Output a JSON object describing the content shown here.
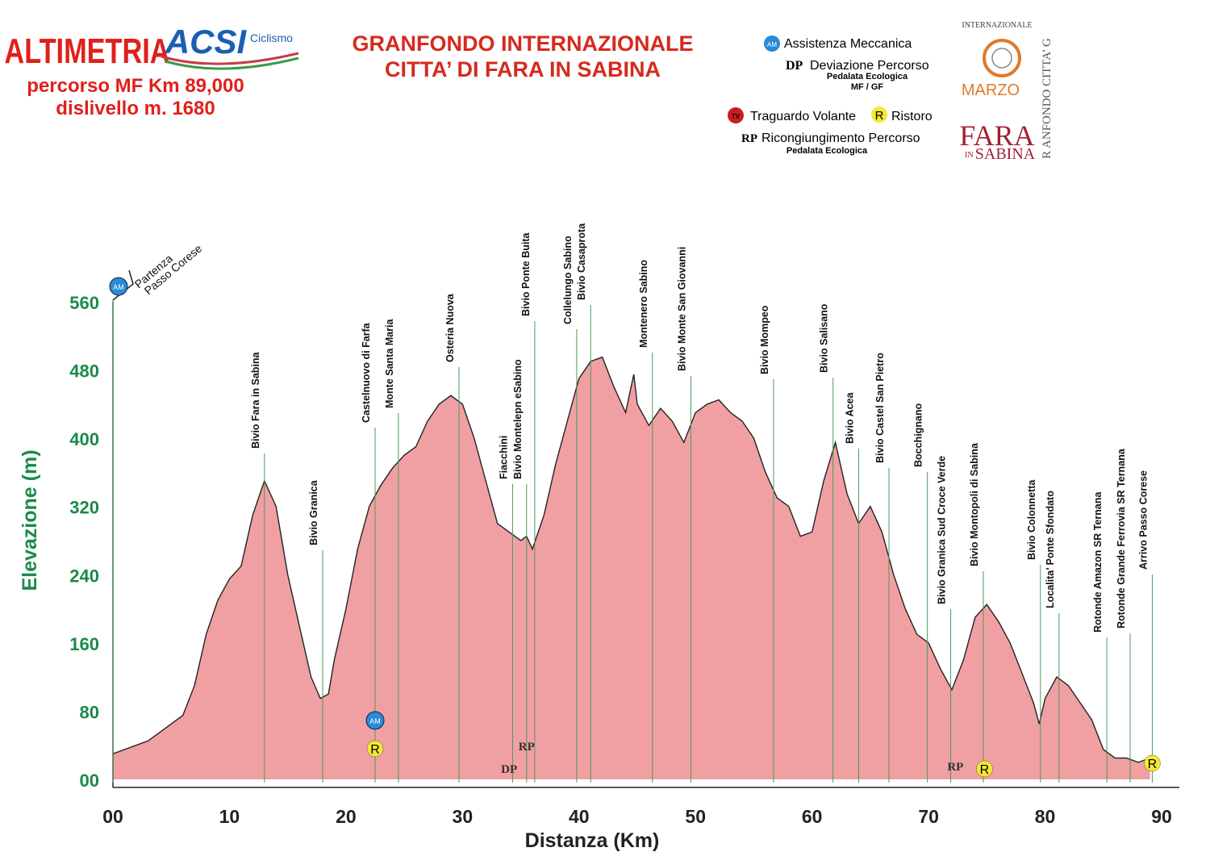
{
  "header": {
    "heading": "ALTIMETRIA",
    "route": "percorso MF  Km 89,000",
    "climb": "dislivello m. 1680",
    "title_lines": [
      "GRANFONDO INTERNAZIONALE",
      "CITTA’ DI FARA IN SABINA"
    ],
    "logo_left": {
      "name": "ACSI",
      "sub": "Ciclismo"
    },
    "logo_right": {
      "top": "INTERNAZIONALE",
      "month": "MARZO",
      "town": "FARA",
      "in": "IN",
      "region": "SABINA",
      "side": "R ANFONDO CITTA’ G"
    }
  },
  "legend": [
    {
      "icon": "AM",
      "text": "Assistenza Meccanica"
    },
    {
      "icon": "DP",
      "text": "Deviazione Percorso",
      "note": [
        "Pedalata Ecologica",
        "MF / GF"
      ]
    },
    {
      "icon": "TV",
      "text": "Traguardo Volante"
    },
    {
      "icon": "R",
      "text": "Ristoro"
    },
    {
      "icon": "RP",
      "text": "Ricongiungimento Percorso",
      "note": [
        "Pedalata Ecologica"
      ]
    }
  ],
  "chart_data": {
    "type": "area",
    "x_label": "Distanza (Km)",
    "y_label": "Elevazione (m)",
    "x": [
      0,
      1,
      2,
      3,
      4,
      5,
      6,
      7,
      8,
      9,
      10,
      11,
      12,
      13,
      14,
      15,
      16,
      17,
      17.8,
      18.5,
      19,
      20,
      21,
      22,
      23,
      24,
      25,
      26,
      27,
      28,
      29,
      30,
      31,
      32,
      33,
      34,
      35,
      35.5,
      36,
      37,
      38,
      39,
      40,
      41,
      42,
      43,
      44,
      44.7,
      45,
      46,
      47,
      48,
      49,
      50,
      51,
      52,
      53,
      54,
      55,
      56,
      57,
      58,
      59,
      60,
      61,
      62,
      63,
      64,
      65,
      66,
      67,
      68,
      69,
      70,
      71,
      72,
      73,
      74,
      75,
      76,
      77,
      78,
      79,
      79.5,
      80,
      81,
      82,
      83,
      84,
      85,
      86,
      87,
      88,
      89
    ],
    "series": [
      {
        "name": "Elevazione",
        "color": "#f0a0a3",
        "values": [
          30,
          35,
          40,
          45,
          55,
          65,
          75,
          110,
          170,
          210,
          235,
          250,
          310,
          350,
          320,
          240,
          180,
          120,
          95,
          100,
          140,
          200,
          270,
          320,
          345,
          365,
          380,
          390,
          420,
          440,
          450,
          440,
          400,
          350,
          300,
          290,
          280,
          285,
          270,
          310,
          370,
          420,
          470,
          490,
          495,
          460,
          430,
          475,
          440,
          415,
          435,
          420,
          395,
          430,
          440,
          445,
          430,
          420,
          400,
          360,
          330,
          320,
          285,
          290,
          350,
          395,
          335,
          300,
          320,
          290,
          240,
          200,
          170,
          160,
          130,
          105,
          140,
          190,
          205,
          185,
          160,
          125,
          90,
          65,
          95,
          120,
          110,
          90,
          70,
          35,
          25,
          25,
          20,
          25
        ]
      }
    ],
    "xlim": [
      0,
      90
    ],
    "ylim": [
      0,
      560
    ],
    "xticks": [
      {
        "value": 0,
        "label": "00"
      },
      10,
      20,
      30,
      40,
      50,
      60,
      70,
      80,
      90
    ],
    "yticks": [
      {
        "value": 0,
        "label": "00"
      },
      80,
      160,
      240,
      320,
      400,
      480,
      560
    ],
    "start": {
      "x": 0,
      "lines": [
        "Partenza",
        "Passo Corese"
      ]
    },
    "waypoints": [
      {
        "name": "Bivio Fara in Sabina",
        "x": 13
      },
      {
        "name": "Bivio Granica",
        "x": 18
      },
      {
        "name": "Castelnuovo di Farfa",
        "x": 22.5
      },
      {
        "name": "Monte Santa Maria",
        "x": 24.5
      },
      {
        "name": "Osteria Nuova",
        "x": 29.7
      },
      {
        "name": "Fiacchini",
        "x": 34.3
      },
      {
        "name": "Bivio Montelepn eSabino",
        "x": 35.5
      },
      {
        "name": "Bivio  Ponte Buita",
        "x": 36.2
      },
      {
        "name": "Collelungo  Sabino",
        "x": 39.8
      },
      {
        "name": "Bivio Casaprota",
        "x": 41
      },
      {
        "name": "Montenero Sabino",
        "x": 46.3
      },
      {
        "name": "Bivio Monte  San Giovanni",
        "x": 49.6
      },
      {
        "name": "Bivio Mompeo",
        "x": 56.7
      },
      {
        "name": "Bivio Salisano",
        "x": 61.8
      },
      {
        "name": "Bivio  Acea",
        "x": 64
      },
      {
        "name": "Bivio Castel San Pietro",
        "x": 66.6
      },
      {
        "name": "Bocchignano",
        "x": 69.9
      },
      {
        "name": "Bivio  Granica  Sud Croce  Verde",
        "x": 71.9
      },
      {
        "name": "Bivio Montopoli di  Sabina",
        "x": 74.7
      },
      {
        "name": "Bivio Colonnetta",
        "x": 79.6
      },
      {
        "name": "Localita’ Ponte Sfondato",
        "x": 81.2
      },
      {
        "name": "Rotonde  Amazon   SR Ternana",
        "x": 85.3
      },
      {
        "name": "Rotonde  Grande  Ferrovia SR Ternana",
        "x": 87.3
      },
      {
        "name": "Arrivo Passo Corese",
        "x": 89.2
      }
    ],
    "markers": [
      {
        "label": "AM",
        "x": 0
      },
      {
        "label": "AM",
        "x": 22.5
      },
      {
        "label": "R",
        "x": 22.5
      },
      {
        "label": "RP",
        "x": 35.5
      },
      {
        "label": "DP",
        "x": 34
      },
      {
        "label": "RP",
        "x": 72.3
      },
      {
        "label": "R",
        "x": 74.8
      },
      {
        "label": "R",
        "x": 89.2
      }
    ]
  }
}
